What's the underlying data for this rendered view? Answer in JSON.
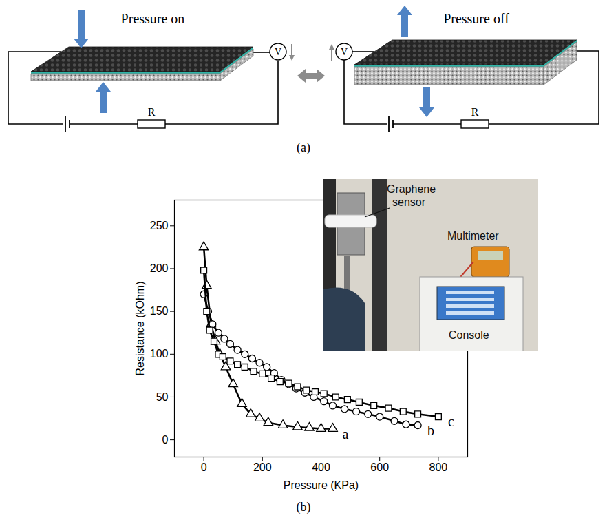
{
  "diagram": {
    "panels": [
      {
        "title": "Pressure on",
        "meter": "V",
        "resistor": "R"
      },
      {
        "title": "Pressure off",
        "meter": "V",
        "resistor": "R"
      }
    ],
    "caption": "(a)"
  },
  "chart_data": {
    "type": "line",
    "caption": "(b)",
    "x_label": "Pressure (KPa)",
    "y_label": "Resistance (kOhm)",
    "xlim": [
      -100,
      900
    ],
    "ylim": [
      -20,
      280
    ],
    "xticks": [
      0,
      200,
      400,
      600,
      800
    ],
    "yticks": [
      0,
      50,
      100,
      150,
      200,
      250
    ],
    "grid": false,
    "annotations": [
      "Graphene sensor",
      "Multimeter",
      "Console"
    ],
    "series": [
      {
        "name": "a",
        "color": "#000000",
        "marker": "triangle",
        "line_style": "solid",
        "x": [
          0,
          10,
          25,
          40,
          55,
          75,
          100,
          130,
          160,
          190,
          220,
          270,
          320,
          360,
          400,
          440
        ],
        "values": [
          225,
          180,
          135,
          115,
          100,
          85,
          65,
          42,
          30,
          25,
          20,
          17,
          15,
          14,
          13,
          13
        ]
      },
      {
        "name": "b",
        "color": "#000000",
        "marker": "circle",
        "line_style": "solid",
        "x": [
          0,
          15,
          30,
          50,
          70,
          90,
          115,
          140,
          165,
          190,
          215,
          240,
          265,
          290,
          315,
          345,
          375,
          410,
          440,
          480,
          520,
          560,
          600,
          650,
          690,
          730
        ],
        "values": [
          170,
          150,
          135,
          125,
          118,
          112,
          105,
          100,
          95,
          90,
          85,
          78,
          70,
          65,
          60,
          55,
          50,
          45,
          40,
          36,
          33,
          30,
          27,
          22,
          18,
          17
        ]
      },
      {
        "name": "c",
        "color": "#000000",
        "marker": "square",
        "line_style": "solid",
        "x": [
          0,
          10,
          20,
          35,
          50,
          65,
          90,
          115,
          140,
          170,
          200,
          230,
          260,
          290,
          320,
          350,
          380,
          410,
          450,
          490,
          530,
          580,
          630,
          680,
          730,
          800
        ],
        "values": [
          198,
          150,
          128,
          115,
          100,
          97,
          92,
          88,
          85,
          80,
          77,
          72,
          68,
          66,
          62,
          58,
          56,
          54,
          50,
          47,
          44,
          40,
          37,
          33,
          30,
          27
        ]
      }
    ]
  }
}
